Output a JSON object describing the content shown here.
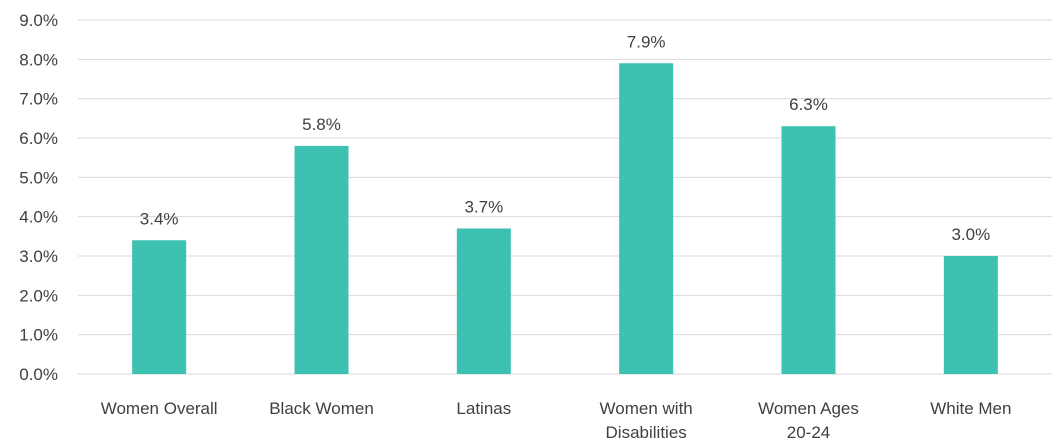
{
  "chart_data": {
    "type": "bar",
    "categories": [
      "Women Overall",
      "Black Women",
      "Latinas",
      "Women with Disabilities",
      "Women Ages 20-24",
      "White Men"
    ],
    "category_lines": [
      [
        "Women Overall"
      ],
      [
        "Black Women"
      ],
      [
        "Latinas"
      ],
      [
        "Women with",
        "Disabilities"
      ],
      [
        "Women Ages",
        "20-24"
      ],
      [
        "White Men"
      ]
    ],
    "values": [
      3.4,
      5.8,
      3.7,
      7.9,
      6.3,
      3.0
    ],
    "data_labels": [
      "3.4%",
      "5.8%",
      "3.7%",
      "7.9%",
      "6.3%",
      "3.0%"
    ],
    "ylim": [
      0,
      9
    ],
    "yticks": [
      "0.0%",
      "1.0%",
      "2.0%",
      "3.0%",
      "4.0%",
      "5.0%",
      "6.0%",
      "7.0%",
      "8.0%",
      "9.0%"
    ],
    "bar_color": "#3dc1b0",
    "grid": true,
    "title": "",
    "xlabel": "",
    "ylabel": ""
  }
}
